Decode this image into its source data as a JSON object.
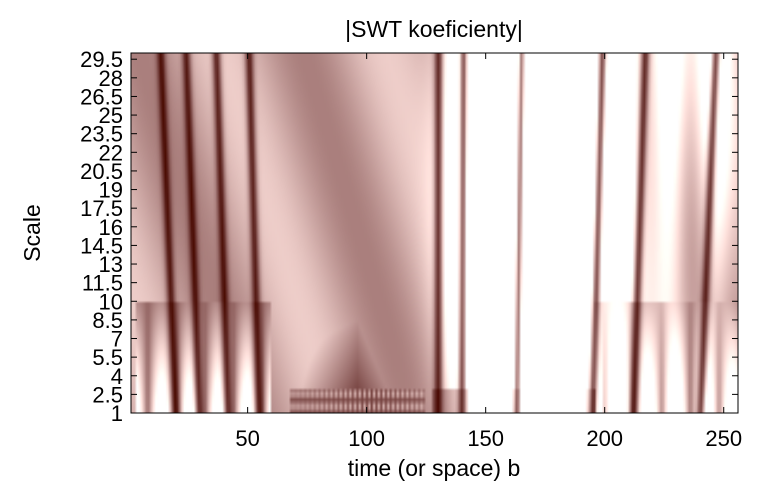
{
  "chart_data": {
    "type": "heatmap",
    "title": "|SWT koeficienty|",
    "xlabel": "time (or space) b",
    "ylabel": "Scale",
    "xlim": [
      1,
      256
    ],
    "ylim": [
      1,
      30
    ],
    "x_ticks": [
      50,
      100,
      150,
      200,
      250
    ],
    "y_ticks": [
      1,
      2.5,
      4,
      5.5,
      7,
      8.5,
      10,
      11.5,
      13,
      14.5,
      16,
      17.5,
      19,
      20.5,
      22,
      23.5,
      25,
      26.5,
      28,
      29.5
    ],
    "y_tick_labels": [
      "1",
      "2.5",
      "4",
      "5.5",
      "7",
      "8.5",
      "10",
      "11.5",
      "13",
      "14.5",
      "16",
      "17.5",
      "19",
      "20.5",
      "22",
      "23.5",
      "25",
      "26.5",
      "28",
      "29.5"
    ],
    "colormap": "pink",
    "colors": {
      "low": "#1e0000",
      "mid": "#a87b7b",
      "high": "#ffffff"
    },
    "grid": false
  }
}
